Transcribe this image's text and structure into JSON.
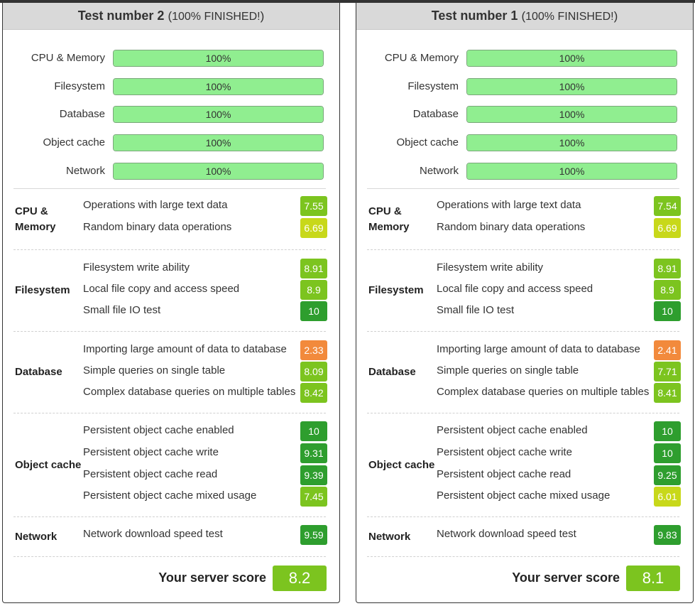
{
  "colors": {
    "progress_fill": "#90ee90",
    "score_green_dark": "#2e9e2e",
    "score_green": "#7cc41f",
    "score_yellowgreen": "#c8d81a",
    "score_orange": "#f28a3c"
  },
  "panels": [
    {
      "title": "Test number 2",
      "status_open": "(",
      "status": "100% FINISHED!",
      "status_close": ")",
      "progress": [
        {
          "label": "CPU & Memory",
          "value": 100,
          "text": "100%"
        },
        {
          "label": "Filesystem",
          "value": 100,
          "text": "100%"
        },
        {
          "label": "Database",
          "value": 100,
          "text": "100%"
        },
        {
          "label": "Object cache",
          "value": 100,
          "text": "100%"
        },
        {
          "label": "Network",
          "value": 100,
          "text": "100%"
        }
      ],
      "sections": [
        {
          "title": "CPU &\nMemory",
          "items": [
            {
              "label": "Operations with large text data",
              "score": "7.55",
              "color": "#7cc41f"
            },
            {
              "label": "Random binary data operations",
              "score": "6.69",
              "color": "#c8d81a"
            }
          ]
        },
        {
          "title": "Filesystem",
          "items": [
            {
              "label": "Filesystem write ability",
              "score": "8.91",
              "color": "#7cc41f"
            },
            {
              "label": "Local file copy and access speed",
              "score": "8.9",
              "color": "#7cc41f"
            },
            {
              "label": "Small file IO test",
              "score": "10",
              "color": "#2e9e2e"
            }
          ]
        },
        {
          "title": "Database",
          "items": [
            {
              "label": "Importing large amount of data to database",
              "score": "2.33",
              "color": "#f28a3c"
            },
            {
              "label": "Simple queries on single table",
              "score": "8.09",
              "color": "#7cc41f"
            },
            {
              "label": "Complex database queries on multiple tables",
              "score": "8.42",
              "color": "#7cc41f"
            }
          ]
        },
        {
          "title": "Object cache",
          "items": [
            {
              "label": "Persistent object cache enabled",
              "score": "10",
              "color": "#2e9e2e"
            },
            {
              "label": "Persistent object cache write",
              "score": "9.31",
              "color": "#2e9e2e"
            },
            {
              "label": "Persistent object cache read",
              "score": "9.39",
              "color": "#2e9e2e"
            },
            {
              "label": "Persistent object cache mixed usage",
              "score": "7.45",
              "color": "#7cc41f"
            }
          ]
        },
        {
          "title": "Network",
          "items": [
            {
              "label": "Network download speed test",
              "score": "9.59",
              "color": "#2e9e2e"
            }
          ]
        }
      ],
      "score_label": "Your server score",
      "score": "8.2",
      "score_color": "#7cc41f"
    },
    {
      "title": "Test number 1",
      "status_open": "(",
      "status": "100% FINISHED!",
      "status_close": ")",
      "progress": [
        {
          "label": "CPU & Memory",
          "value": 100,
          "text": "100%"
        },
        {
          "label": "Filesystem",
          "value": 100,
          "text": "100%"
        },
        {
          "label": "Database",
          "value": 100,
          "text": "100%"
        },
        {
          "label": "Object cache",
          "value": 100,
          "text": "100%"
        },
        {
          "label": "Network",
          "value": 100,
          "text": "100%"
        }
      ],
      "sections": [
        {
          "title": "CPU &\nMemory",
          "items": [
            {
              "label": "Operations with large text data",
              "score": "7.54",
              "color": "#7cc41f"
            },
            {
              "label": "Random binary data operations",
              "score": "6.69",
              "color": "#c8d81a"
            }
          ]
        },
        {
          "title": "Filesystem",
          "items": [
            {
              "label": "Filesystem write ability",
              "score": "8.91",
              "color": "#7cc41f"
            },
            {
              "label": "Local file copy and access speed",
              "score": "8.9",
              "color": "#7cc41f"
            },
            {
              "label": "Small file IO test",
              "score": "10",
              "color": "#2e9e2e"
            }
          ]
        },
        {
          "title": "Database",
          "items": [
            {
              "label": "Importing large amount of data to database",
              "score": "2.41",
              "color": "#f28a3c"
            },
            {
              "label": "Simple queries on single table",
              "score": "7.71",
              "color": "#7cc41f"
            },
            {
              "label": "Complex database queries on multiple tables",
              "score": "8.41",
              "color": "#7cc41f"
            }
          ]
        },
        {
          "title": "Object cache",
          "items": [
            {
              "label": "Persistent object cache enabled",
              "score": "10",
              "color": "#2e9e2e"
            },
            {
              "label": "Persistent object cache write",
              "score": "10",
              "color": "#2e9e2e"
            },
            {
              "label": "Persistent object cache read",
              "score": "9.25",
              "color": "#2e9e2e"
            },
            {
              "label": "Persistent object cache mixed usage",
              "score": "6.01",
              "color": "#c8d81a"
            }
          ]
        },
        {
          "title": "Network",
          "items": [
            {
              "label": "Network download speed test",
              "score": "9.83",
              "color": "#2e9e2e"
            }
          ]
        }
      ],
      "score_label": "Your server score",
      "score": "8.1",
      "score_color": "#7cc41f"
    }
  ]
}
